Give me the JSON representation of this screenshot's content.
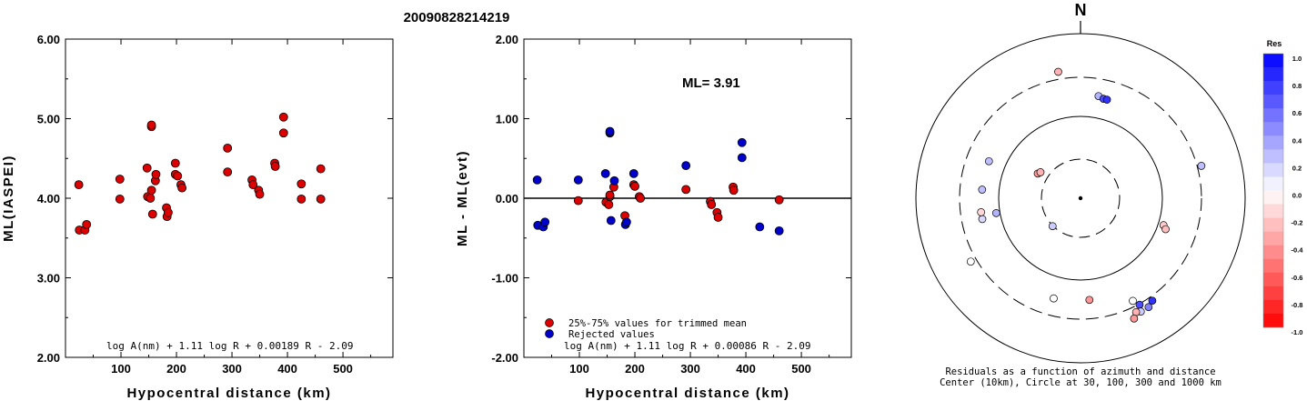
{
  "title": "20090828214219",
  "chart_data": [
    {
      "type": "scatter",
      "xlabel": "Hypocentral distance (km)",
      "ylabel": "ML(IASPEI)",
      "xlim": [
        0,
        590
      ],
      "ylim": [
        2.0,
        6.0
      ],
      "xticks": [
        "100",
        "200",
        "300",
        "400",
        "500"
      ],
      "yticks": [
        "2.00",
        "3.00",
        "4.00",
        "5.00",
        "6.00"
      ],
      "formula": "log A(nm) + 1.11 log R + 0.00189 R - 2.09",
      "series": [
        {
          "color": "#dd0000",
          "points": [
            [
              24,
              4.17
            ],
            [
              25,
              3.6
            ],
            [
              35,
              3.6
            ],
            [
              38,
              3.67
            ],
            [
              98,
              4.24
            ],
            [
              98,
              3.99
            ],
            [
              147,
              4.38
            ],
            [
              148,
              4.02
            ],
            [
              153,
              4.0
            ],
            [
              155,
              4.9
            ],
            [
              155,
              4.92
            ],
            [
              155,
              4.1
            ],
            [
              157,
              3.8
            ],
            [
              162,
              4.22
            ],
            [
              163,
              4.3
            ],
            [
              182,
              3.88
            ],
            [
              183,
              3.77
            ],
            [
              185,
              3.82
            ],
            [
              198,
              4.44
            ],
            [
              198,
              4.3
            ],
            [
              202,
              4.28
            ],
            [
              208,
              4.17
            ],
            [
              210,
              4.13
            ],
            [
              292,
              4.63
            ],
            [
              292,
              4.33
            ],
            [
              336,
              4.23
            ],
            [
              338,
              4.17
            ],
            [
              348,
              4.1
            ],
            [
              350,
              4.05
            ],
            [
              377,
              4.44
            ],
            [
              378,
              4.4
            ],
            [
              393,
              5.02
            ],
            [
              393,
              4.82
            ],
            [
              425,
              4.18
            ],
            [
              425,
              3.99
            ],
            [
              460,
              4.37
            ],
            [
              460,
              3.99
            ]
          ]
        }
      ]
    },
    {
      "type": "scatter",
      "xlabel": "Hypocentral distance (km)",
      "ylabel": "ML - ML(evt)",
      "xlim": [
        0,
        590
      ],
      "ylim": [
        -2.0,
        2.0
      ],
      "xticks": [
        "100",
        "200",
        "300",
        "400",
        "500"
      ],
      "yticks": [
        "-2.00",
        "-1.00",
        "0.00",
        "1.00",
        "2.00"
      ],
      "annotation": "ML= 3.91",
      "formula": "log A(nm) + 1.11 log R + 0.00086 R - 2.09",
      "legend_position": "bottom-left",
      "series": [
        {
          "name": "25%-75% values for trimmed mean",
          "color": "#dd0000",
          "points": [
            [
              98,
              -0.03
            ],
            [
              148,
              -0.05
            ],
            [
              153,
              -0.08
            ],
            [
              155,
              0.02
            ],
            [
              155,
              0.04
            ],
            [
              162,
              0.14
            ],
            [
              182,
              -0.22
            ],
            [
              198,
              0.17
            ],
            [
              200,
              0.15
            ],
            [
              208,
              0.02
            ],
            [
              210,
              0.0
            ],
            [
              292,
              0.11
            ],
            [
              336,
              -0.04
            ],
            [
              338,
              -0.08
            ],
            [
              348,
              -0.18
            ],
            [
              350,
              -0.24
            ],
            [
              377,
              0.14
            ],
            [
              378,
              0.1
            ],
            [
              460,
              -0.02
            ]
          ]
        },
        {
          "name": "Rejected values",
          "color": "#0000cc",
          "points": [
            [
              24,
              0.23
            ],
            [
              25,
              -0.34
            ],
            [
              35,
              -0.36
            ],
            [
              38,
              -0.3
            ],
            [
              98,
              0.23
            ],
            [
              147,
              0.31
            ],
            [
              155,
              0.82
            ],
            [
              155,
              0.84
            ],
            [
              157,
              -0.28
            ],
            [
              163,
              0.22
            ],
            [
              183,
              -0.33
            ],
            [
              185,
              -0.3
            ],
            [
              198,
              0.31
            ],
            [
              292,
              0.41
            ],
            [
              393,
              0.7
            ],
            [
              393,
              0.51
            ],
            [
              425,
              -0.36
            ],
            [
              460,
              -0.41
            ]
          ]
        }
      ]
    },
    {
      "type": "scatter",
      "subtype": "polar",
      "north_label": "N",
      "caption_line1": "Residuals as a function of azimuth and distance",
      "caption_line2": "Center (10km), Circle at 30, 100, 300 and 1000 km",
      "colorbar_title": "Res",
      "colorbar_ticks": [
        "1.0",
        "0.8",
        "0.6",
        "0.4",
        "0.2",
        "0.0",
        "-0.2",
        "-0.4",
        "-0.6",
        "-0.8",
        "-1.0"
      ],
      "points": [
        {
          "az": -10,
          "r": 0.78,
          "res": -0.3
        },
        {
          "az": 10,
          "r": 0.63,
          "res": 0.3
        },
        {
          "az": 13,
          "r": 0.62,
          "res": 0.7
        },
        {
          "az": 15,
          "r": 0.62,
          "res": 0.8
        },
        {
          "az": 75,
          "r": 0.76,
          "res": 0.25
        },
        {
          "az": 108,
          "r": 0.53,
          "res": -0.2
        },
        {
          "az": 110,
          "r": 0.55,
          "res": -0.25
        },
        {
          "az": 145,
          "r": 0.76,
          "res": 0.8
        },
        {
          "az": 148,
          "r": 0.78,
          "res": 0.5
        },
        {
          "az": 151,
          "r": 0.74,
          "res": 0.7
        },
        {
          "az": 152,
          "r": 0.78,
          "res": 0.2
        },
        {
          "az": 153,
          "r": 0.7,
          "res": 0.0
        },
        {
          "az": 154,
          "r": 0.77,
          "res": -0.3
        },
        {
          "az": 156,
          "r": 0.8,
          "res": -0.4
        },
        {
          "az": 175,
          "r": 0.62,
          "res": -0.4
        },
        {
          "az": 195,
          "r": 0.63,
          "res": 0.0
        },
        {
          "az": 240,
          "r": 0.77,
          "res": 0.0
        },
        {
          "az": 260,
          "r": 0.52,
          "res": 0.3
        },
        {
          "az": 258,
          "r": 0.61,
          "res": 0.15
        },
        {
          "az": 262,
          "r": 0.61,
          "res": -0.15
        },
        {
          "az": 275,
          "r": 0.6,
          "res": 0.25
        },
        {
          "az": 292,
          "r": 0.6,
          "res": 0.25
        },
        {
          "az": 300,
          "r": 0.3,
          "res": -0.4
        },
        {
          "az": 303,
          "r": 0.29,
          "res": -0.3
        },
        {
          "az": 225,
          "r": 0.24,
          "res": 0.2
        }
      ]
    }
  ]
}
